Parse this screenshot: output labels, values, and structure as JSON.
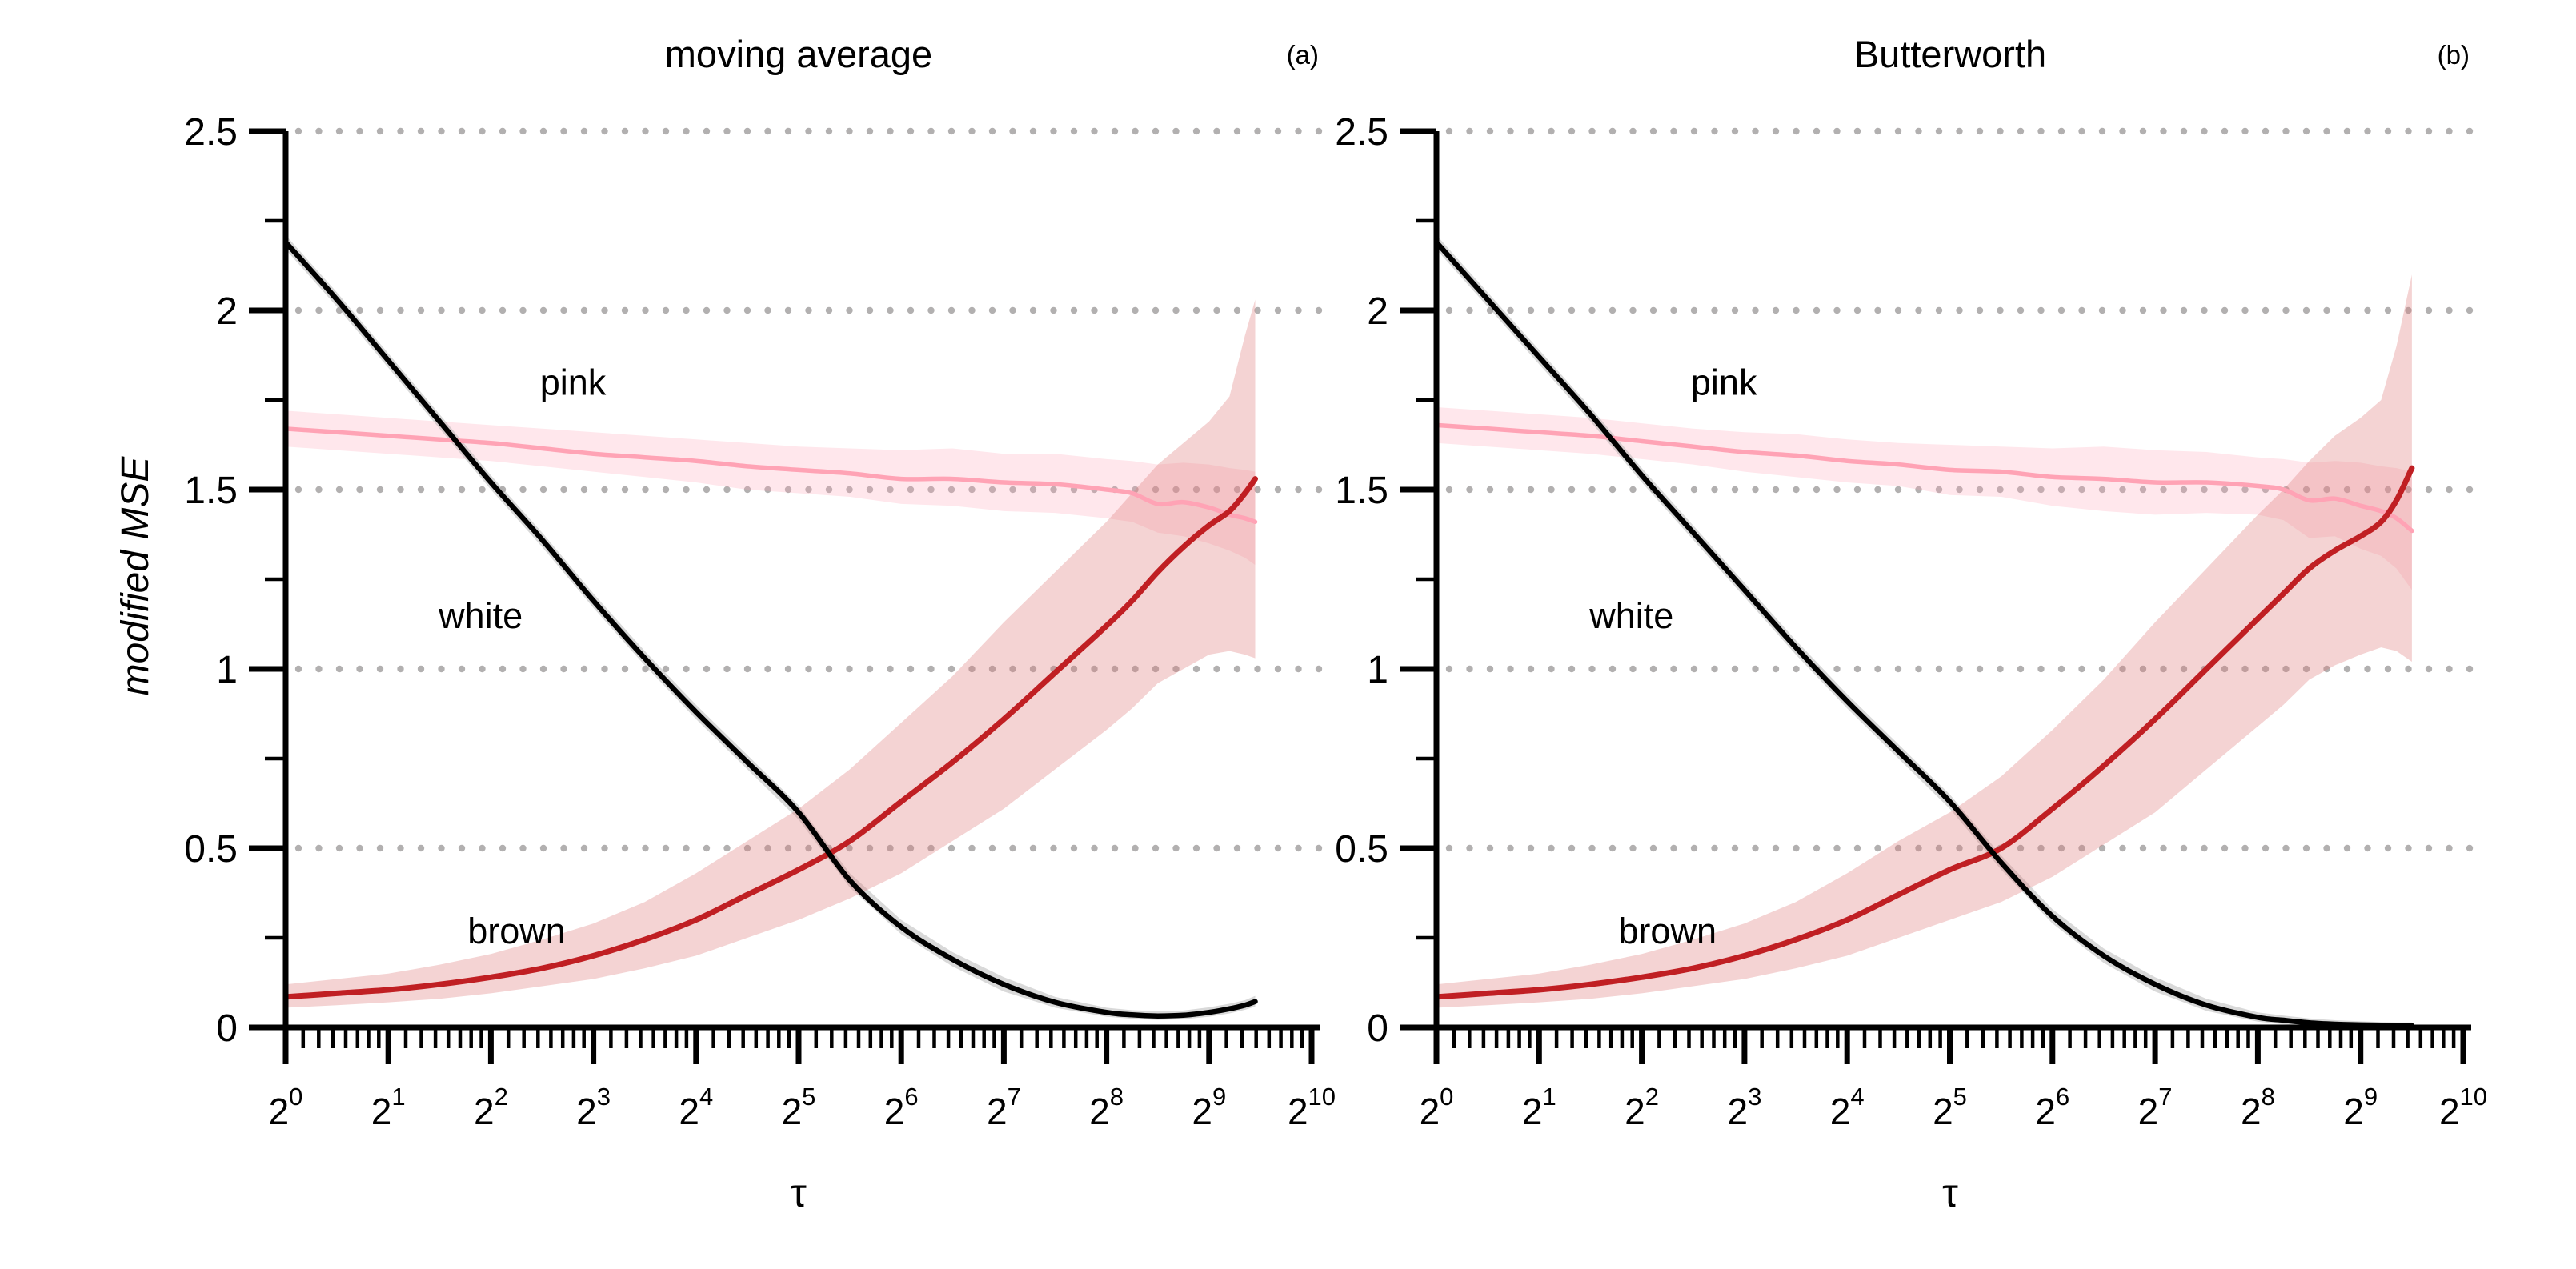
{
  "figure": {
    "ylabel": "modified MSE",
    "background": "#ffffff",
    "colors": {
      "axis": "#000000",
      "grid_dots": "#b2b0b0",
      "pink_line": "#ffa3b5",
      "pink_band": "#ff9fb3",
      "brown_line": "#c01f23",
      "brown_band": "#dd7a7a",
      "white_line": "#000000",
      "white_band": "#aaaaaa"
    }
  },
  "chart_data": [
    {
      "type": "line",
      "title": "moving average",
      "panel_label": "(a)",
      "xlabel": "τ",
      "ylabel": "modified MSE",
      "x_scale": "log2",
      "x_tick_base": "2",
      "x_tick_exponents": [
        0,
        1,
        2,
        3,
        4,
        5,
        6,
        7,
        8,
        9,
        10
      ],
      "xlim_log2": [
        0,
        10
      ],
      "ylim": [
        0,
        2.5
      ],
      "y_ticks": [
        "0",
        "0.5",
        "1",
        "1.5",
        "2",
        "2.5"
      ],
      "y_tick_values": [
        0,
        0.5,
        1,
        1.5,
        2,
        2.5
      ],
      "y_minor_step": 0.25,
      "grid": "horizontal dotted lines at labeled y ticks",
      "legend_position": "none (inline annotations)",
      "annotations": [
        {
          "text": "pink",
          "x_log2": 2.8,
          "y": 1.8
        },
        {
          "text": "white",
          "x_log2": 1.9,
          "y": 1.15
        },
        {
          "text": "brown",
          "x_log2": 2.25,
          "y": 0.27
        }
      ],
      "x_log2": [
        0,
        0.5,
        1,
        1.5,
        2,
        2.5,
        3,
        3.5,
        4,
        4.5,
        5,
        5.5,
        6,
        6.5,
        7,
        7.5,
        8,
        8.25,
        8.5,
        8.75,
        9,
        9.2,
        9.35,
        9.45
      ],
      "series": [
        {
          "name": "pink",
          "color": "#ffa3b5",
          "y": [
            1.67,
            1.66,
            1.65,
            1.64,
            1.63,
            1.615,
            1.6,
            1.59,
            1.58,
            1.565,
            1.555,
            1.545,
            1.53,
            1.53,
            1.52,
            1.515,
            1.5,
            1.49,
            1.46,
            1.465,
            1.45,
            1.43,
            1.42,
            1.41
          ],
          "band_upper": [
            1.72,
            1.71,
            1.7,
            1.69,
            1.68,
            1.67,
            1.66,
            1.65,
            1.64,
            1.63,
            1.62,
            1.615,
            1.61,
            1.615,
            1.6,
            1.6,
            1.585,
            1.58,
            1.57,
            1.575,
            1.57,
            1.56,
            1.555,
            1.55
          ],
          "band_lower": [
            1.62,
            1.61,
            1.6,
            1.59,
            1.58,
            1.565,
            1.55,
            1.535,
            1.52,
            1.5,
            1.49,
            1.48,
            1.46,
            1.455,
            1.44,
            1.435,
            1.42,
            1.41,
            1.38,
            1.37,
            1.35,
            1.33,
            1.31,
            1.29
          ]
        },
        {
          "name": "white",
          "color": "#000000",
          "y": [
            2.19,
            2.03,
            1.86,
            1.69,
            1.52,
            1.36,
            1.19,
            1.03,
            0.88,
            0.74,
            0.6,
            0.41,
            0.28,
            0.19,
            0.12,
            0.07,
            0.042,
            0.035,
            0.032,
            0.034,
            0.042,
            0.052,
            0.062,
            0.072
          ],
          "band_upper": [
            2.21,
            2.05,
            1.88,
            1.71,
            1.54,
            1.38,
            1.21,
            1.05,
            0.9,
            0.76,
            0.62,
            0.43,
            0.3,
            0.21,
            0.14,
            0.085,
            0.055,
            0.048,
            0.045,
            0.047,
            0.056,
            0.066,
            0.076,
            0.088
          ],
          "band_lower": [
            2.17,
            2.01,
            1.84,
            1.67,
            1.5,
            1.34,
            1.17,
            1.01,
            0.86,
            0.72,
            0.58,
            0.39,
            0.26,
            0.17,
            0.1,
            0.055,
            0.03,
            0.024,
            0.021,
            0.023,
            0.03,
            0.039,
            0.049,
            0.058
          ]
        },
        {
          "name": "brown",
          "color": "#c01f23",
          "y": [
            0.085,
            0.095,
            0.105,
            0.12,
            0.14,
            0.165,
            0.2,
            0.245,
            0.3,
            0.37,
            0.44,
            0.52,
            0.63,
            0.74,
            0.86,
            0.99,
            1.12,
            1.19,
            1.27,
            1.34,
            1.4,
            1.44,
            1.49,
            1.53
          ],
          "band_upper": [
            0.12,
            0.135,
            0.15,
            0.175,
            0.205,
            0.245,
            0.29,
            0.35,
            0.43,
            0.52,
            0.61,
            0.72,
            0.85,
            0.98,
            1.13,
            1.27,
            1.41,
            1.49,
            1.57,
            1.63,
            1.69,
            1.76,
            1.93,
            2.03
          ],
          "band_lower": [
            0.055,
            0.062,
            0.07,
            0.08,
            0.095,
            0.115,
            0.135,
            0.165,
            0.2,
            0.25,
            0.3,
            0.36,
            0.43,
            0.52,
            0.61,
            0.72,
            0.83,
            0.89,
            0.96,
            1.0,
            1.04,
            1.05,
            1.04,
            1.03
          ]
        }
      ]
    },
    {
      "type": "line",
      "title": "Butterworth",
      "panel_label": "(b)",
      "xlabel": "τ",
      "ylabel": "modified MSE",
      "x_scale": "log2",
      "x_tick_base": "2",
      "x_tick_exponents": [
        0,
        1,
        2,
        3,
        4,
        5,
        6,
        7,
        8,
        9,
        10
      ],
      "xlim_log2": [
        0,
        10
      ],
      "ylim": [
        0,
        2.5
      ],
      "y_ticks": [
        "0",
        "0.5",
        "1",
        "1.5",
        "2",
        "2.5"
      ],
      "y_tick_values": [
        0,
        0.5,
        1,
        1.5,
        2,
        2.5
      ],
      "y_minor_step": 0.25,
      "grid": "horizontal dotted lines at labeled y ticks",
      "legend_position": "none (inline annotations)",
      "annotations": [
        {
          "text": "pink",
          "x_log2": 2.8,
          "y": 1.8
        },
        {
          "text": "white",
          "x_log2": 1.9,
          "y": 1.15
        },
        {
          "text": "brown",
          "x_log2": 2.25,
          "y": 0.27
        }
      ],
      "x_log2": [
        0,
        0.5,
        1,
        1.5,
        2,
        2.5,
        3,
        3.5,
        4,
        4.5,
        5,
        5.5,
        6,
        6.5,
        7,
        7.5,
        8,
        8.25,
        8.5,
        8.75,
        9,
        9.2,
        9.35,
        9.5
      ],
      "series": [
        {
          "name": "pink",
          "color": "#ffa3b5",
          "y": [
            1.68,
            1.67,
            1.66,
            1.65,
            1.635,
            1.62,
            1.605,
            1.595,
            1.58,
            1.57,
            1.555,
            1.55,
            1.535,
            1.53,
            1.52,
            1.52,
            1.51,
            1.5,
            1.47,
            1.475,
            1.455,
            1.44,
            1.42,
            1.385
          ],
          "band_upper": [
            1.73,
            1.72,
            1.71,
            1.7,
            1.685,
            1.67,
            1.66,
            1.655,
            1.64,
            1.63,
            1.625,
            1.62,
            1.615,
            1.62,
            1.61,
            1.605,
            1.59,
            1.585,
            1.575,
            1.58,
            1.575,
            1.565,
            1.56,
            1.55
          ],
          "band_lower": [
            1.63,
            1.62,
            1.61,
            1.6,
            1.585,
            1.57,
            1.55,
            1.535,
            1.52,
            1.51,
            1.485,
            1.48,
            1.455,
            1.44,
            1.43,
            1.435,
            1.43,
            1.415,
            1.365,
            1.37,
            1.335,
            1.315,
            1.28,
            1.22
          ]
        },
        {
          "name": "white",
          "color": "#000000",
          "y": [
            2.19,
            2.03,
            1.87,
            1.71,
            1.54,
            1.38,
            1.22,
            1.06,
            0.91,
            0.77,
            0.63,
            0.46,
            0.31,
            0.2,
            0.12,
            0.062,
            0.028,
            0.02,
            0.013,
            0.009,
            0.007,
            0.006,
            0.005,
            0.005
          ],
          "band_upper": [
            2.21,
            2.05,
            1.89,
            1.73,
            1.56,
            1.4,
            1.24,
            1.08,
            0.93,
            0.79,
            0.65,
            0.48,
            0.33,
            0.22,
            0.14,
            0.08,
            0.042,
            0.033,
            0.025,
            0.02,
            0.017,
            0.015,
            0.014,
            0.014
          ],
          "band_lower": [
            2.17,
            2.01,
            1.85,
            1.69,
            1.52,
            1.36,
            1.2,
            1.04,
            0.89,
            0.75,
            0.61,
            0.44,
            0.29,
            0.18,
            0.1,
            0.046,
            0.016,
            0.009,
            0.004,
            0.002,
            0.001,
            0.001,
            0.001,
            0.001
          ]
        },
        {
          "name": "brown",
          "color": "#c01f23",
          "y": [
            0.085,
            0.095,
            0.105,
            0.12,
            0.14,
            0.165,
            0.2,
            0.245,
            0.3,
            0.37,
            0.44,
            0.5,
            0.61,
            0.73,
            0.86,
            1.0,
            1.14,
            1.21,
            1.28,
            1.33,
            1.37,
            1.41,
            1.47,
            1.56
          ],
          "band_upper": [
            0.12,
            0.135,
            0.15,
            0.175,
            0.205,
            0.245,
            0.29,
            0.35,
            0.43,
            0.52,
            0.6,
            0.7,
            0.83,
            0.97,
            1.13,
            1.28,
            1.43,
            1.5,
            1.58,
            1.65,
            1.7,
            1.75,
            1.9,
            2.1
          ],
          "band_lower": [
            0.055,
            0.062,
            0.07,
            0.08,
            0.095,
            0.115,
            0.135,
            0.165,
            0.2,
            0.25,
            0.3,
            0.35,
            0.42,
            0.51,
            0.6,
            0.72,
            0.84,
            0.9,
            0.97,
            1.01,
            1.04,
            1.06,
            1.05,
            1.02
          ]
        }
      ]
    }
  ]
}
